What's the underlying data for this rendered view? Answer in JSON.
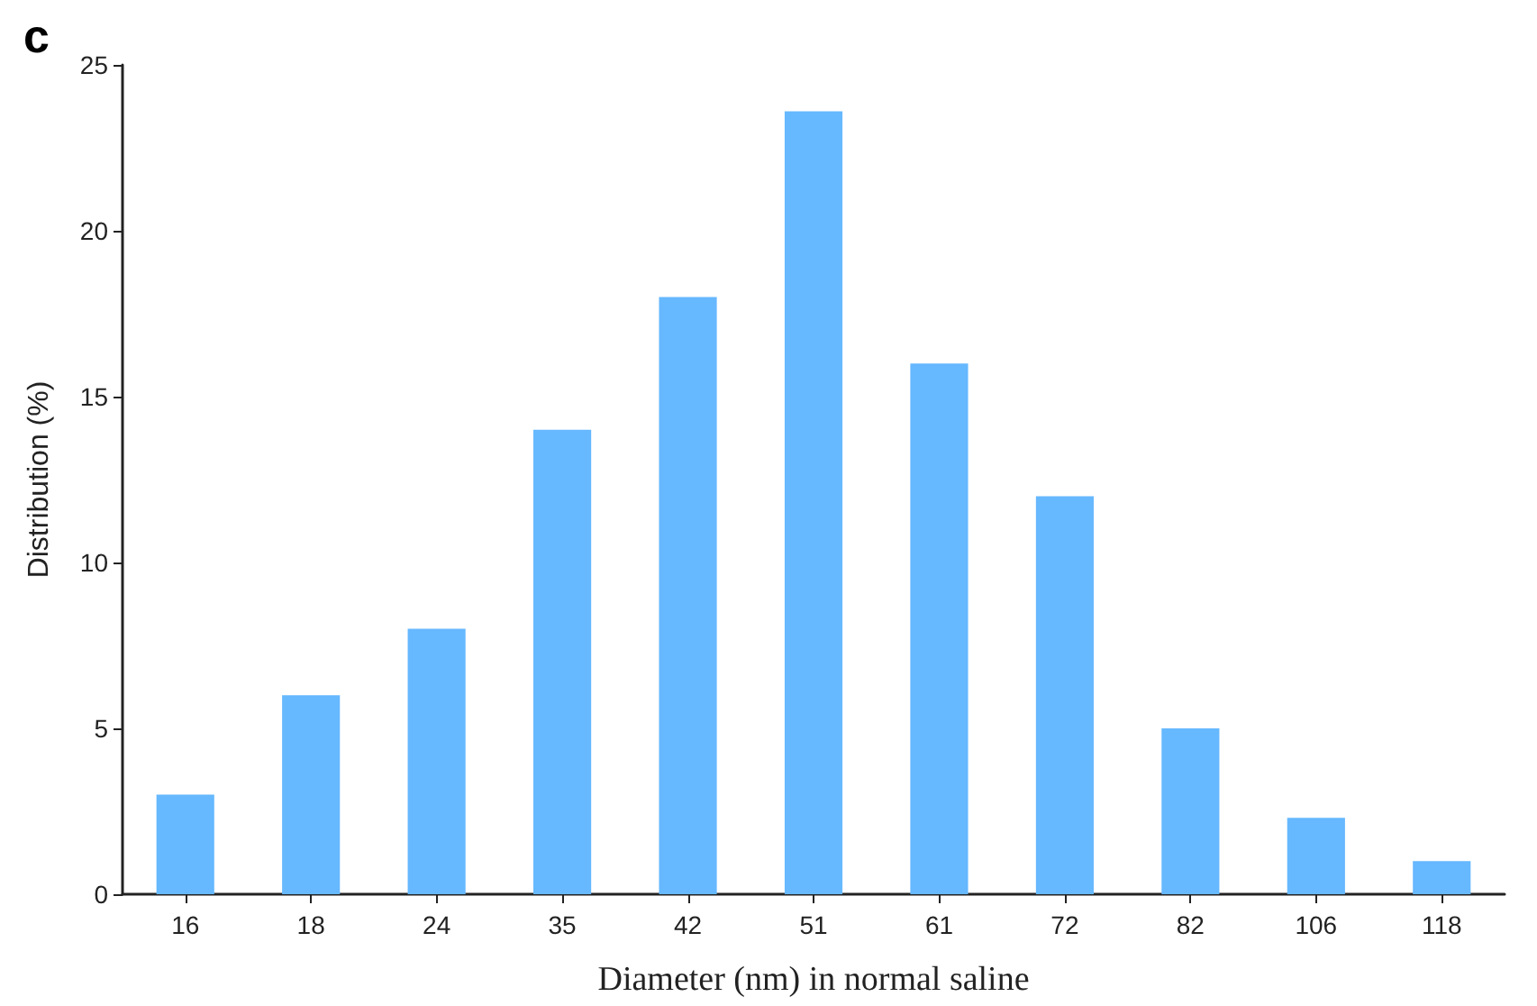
{
  "chart_data": {
    "type": "bar",
    "title": "c",
    "xlabel": "Diameter (nm) in normal saline",
    "ylabel": "Distribution (%)",
    "categories": [
      "16",
      "18",
      "24",
      "35",
      "42",
      "51",
      "61",
      "72",
      "82",
      "106",
      "118"
    ],
    "values": [
      3,
      6,
      8,
      14,
      18,
      23.6,
      16,
      12,
      5,
      2.3,
      1
    ],
    "color": "#66b8ff",
    "ylim": [
      0,
      25
    ],
    "yticks": [
      0,
      5,
      10,
      15,
      20,
      25
    ],
    "grid": false
  }
}
